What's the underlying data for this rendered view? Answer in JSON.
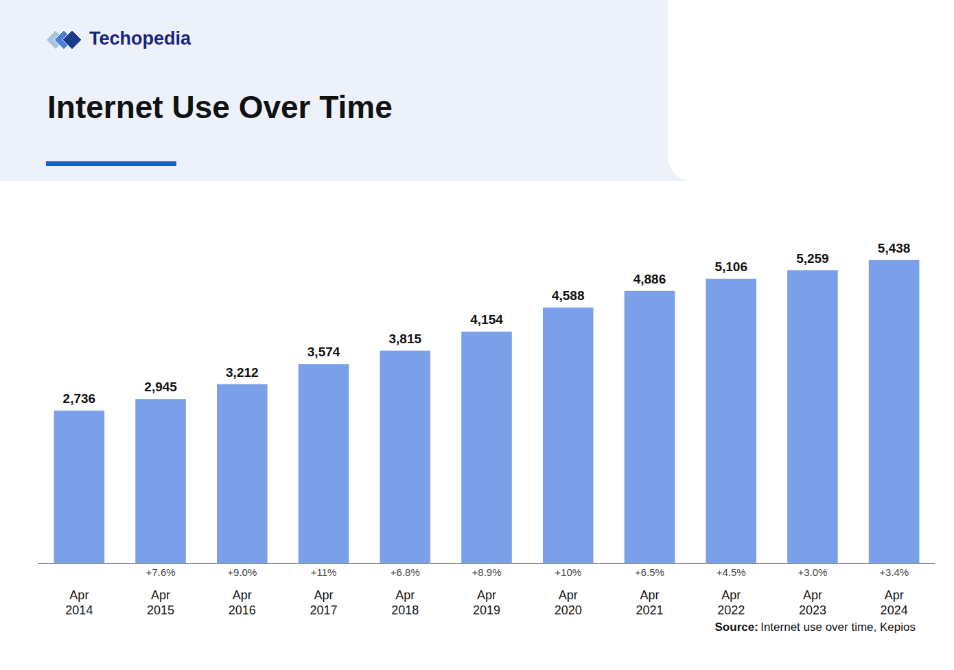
{
  "chart_data": {
    "type": "bar",
    "title": "Internet Use Over Time",
    "logo_text": "Techopedia",
    "categories": [
      "Apr\n2014",
      "Apr\n2015",
      "Apr\n2016",
      "Apr\n2017",
      "Apr\n2018",
      "Apr\n2019",
      "Apr\n2020",
      "Apr\n2021",
      "Apr\n2022",
      "Apr\n2023",
      "Apr\n2024"
    ],
    "values": [
      2736,
      2945,
      3212,
      3574,
      3815,
      4154,
      4588,
      4886,
      5106,
      5259,
      5438
    ],
    "value_labels": [
      "2,736",
      "2,945",
      "3,212",
      "3,574",
      "3,815",
      "4,154",
      "4,588",
      "4,886",
      "5,106",
      "5,259",
      "5,438"
    ],
    "color": "#7B9FE8",
    "ylim": [
      0,
      6500
    ],
    "grid": false,
    "tick_labels": "x",
    "data_labels": true,
    "annotations": [
      {
        "category": "Apr\n2015",
        "text": "+7.6%"
      },
      {
        "category": "Apr\n2016",
        "text": "+9.0%"
      },
      {
        "category": "Apr\n2017",
        "text": "+11%"
      },
      {
        "category": "Apr\n2018",
        "text": "+6.8%"
      },
      {
        "category": "Apr\n2019",
        "text": "+8.9%"
      },
      {
        "category": "Apr\n2020",
        "text": "+10%"
      },
      {
        "category": "Apr\n2021",
        "text": "+6.5%"
      },
      {
        "category": "Apr\n2022",
        "text": "+4.5%"
      },
      {
        "category": "Apr\n2023",
        "text": "+3.0%"
      },
      {
        "category": "Apr\n2024",
        "text": "+3.4%"
      }
    ],
    "source": {
      "label": "Source:",
      "text": "Internet use over time, Kepios"
    }
  }
}
